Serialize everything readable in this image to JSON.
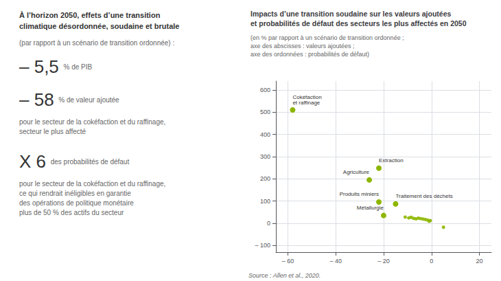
{
  "chart_data": {
    "type": "scatter",
    "title": "Impacts d’une transition soudaine sur les valeurs ajoutées\net probabilités de défaut des secteurs les plus affectés en 2050",
    "subtitle": "(en % par rapport à un scénario de transition ordonnée ;\naxe des abscisses : valeurs ajoutées ;\naxe des ordonnées : probabilités de défaut)",
    "source": "Source : Allen et al., 2020.",
    "panel": {
      "title": "À l’horizon 2050, effets d’une transition\nclimatique désordonnée, soudaine et brutale",
      "subtitle": "(par rapport à un scénario de transition ordonnée) :",
      "stats": [
        {
          "text": "– 5,5",
          "unit": "% de PIB"
        },
        {
          "text": "– 58",
          "unit": "% de valeur ajoutée",
          "note": "pour le secteur de la cokéfaction et du raffinage,\nsecteur le plus affecté"
        },
        {
          "text": "X 6",
          "unit": "des probabilités de défaut",
          "note": "pour le secteur de la cokéfaction et du raffinage,\nce qui rendrait inéligibles en garantie\ndes opérations de politique monétaire\nplus de 50 % des actifs du secteur"
        }
      ]
    },
    "series": [
      {
        "x": [
          -11,
          -9.5,
          -8.5,
          -7.5,
          -6.5,
          -5.5,
          -4.5,
          -3.5,
          -2.5,
          -1.5,
          -0.5,
          -1.0,
          5
        ],
        "values": [
          28,
          24,
          27,
          22,
          20,
          23,
          21,
          19,
          17,
          14,
          12,
          9,
          -18
        ]
      },
      {
        "x": [
          -58,
          -22,
          -26,
          -22,
          -15,
          -20
        ],
        "values": [
          510,
          248,
          195,
          96,
          87,
          35
        ],
        "labels": [
          "Cokéfaction\net raffinage",
          "Extraction",
          "Agriculture",
          "Produits miniers",
          "Traitement des déchets",
          "Métallurgie"
        ]
      }
    ],
    "color": "#8db600",
    "xlim": [
      -65,
      25
    ],
    "ylim": [
      -130,
      640
    ],
    "xticks": [
      {
        "value": -60,
        "label": "– 60"
      },
      {
        "value": -40,
        "label": "– 40"
      },
      {
        "value": -20,
        "label": "– 20"
      },
      0,
      20
    ],
    "yticks": [
      {
        "value": -100,
        "label": "– 100"
      },
      0,
      100,
      200,
      300,
      400,
      500,
      600
    ],
    "grid": true
  }
}
